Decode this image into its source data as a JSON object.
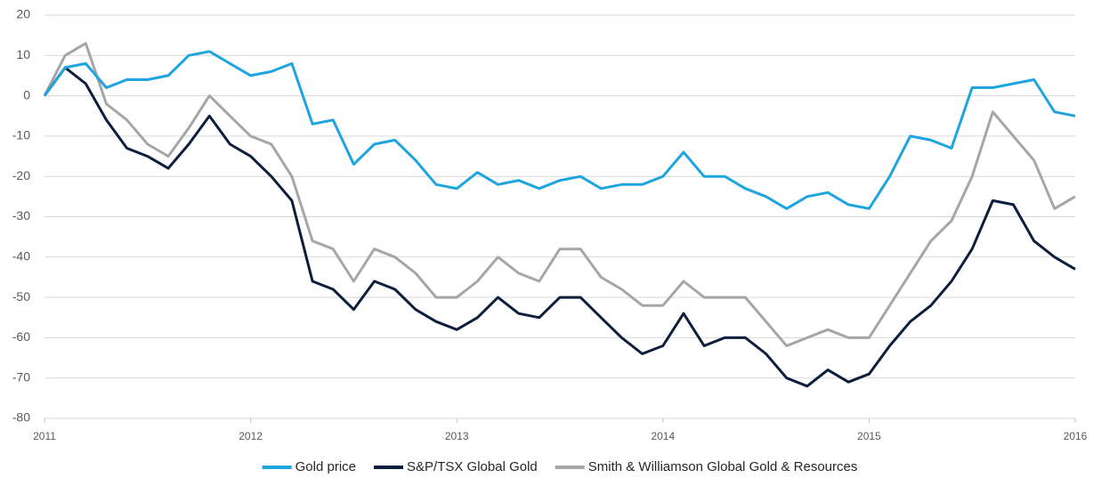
{
  "chart_data": {
    "type": "line",
    "x": [
      2011.0,
      2011.1,
      2011.2,
      2011.3,
      2011.4,
      2011.5,
      2011.6,
      2011.7,
      2011.8,
      2011.9,
      2012.0,
      2012.1,
      2012.2,
      2012.3,
      2012.4,
      2012.5,
      2012.6,
      2012.7,
      2012.8,
      2012.9,
      2013.0,
      2013.1,
      2013.2,
      2013.3,
      2013.4,
      2013.5,
      2013.6,
      2013.7,
      2013.8,
      2013.9,
      2014.0,
      2014.1,
      2014.2,
      2014.3,
      2014.4,
      2014.5,
      2014.6,
      2014.7,
      2014.8,
      2014.9,
      2015.0,
      2015.1,
      2015.2,
      2015.3,
      2015.4,
      2015.5,
      2015.6,
      2015.7,
      2015.8,
      2015.9,
      2016.0
    ],
    "series": [
      {
        "name": "Gold price",
        "color": "#1ea5e0",
        "values": [
          0,
          7,
          8,
          2,
          4,
          4,
          5,
          10,
          11,
          8,
          5,
          6,
          8,
          -7,
          -6,
          -17,
          -12,
          -11,
          -16,
          -22,
          -23,
          -19,
          -22,
          -21,
          -23,
          -21,
          -20,
          -23,
          -22,
          -22,
          -20,
          -14,
          -20,
          -20,
          -23,
          -25,
          -28,
          -25,
          -24,
          -27,
          -28,
          -20,
          -10,
          -11,
          -13,
          2,
          2,
          3,
          4,
          -4,
          -5
        ]
      },
      {
        "name": "S&P/TSX Global Gold",
        "color": "#0d1f3c",
        "values": [
          0,
          7,
          3,
          -6,
          -13,
          -15,
          -18,
          -12,
          -5,
          -12,
          -15,
          -20,
          -26,
          -46,
          -48,
          -53,
          -46,
          -48,
          -53,
          -56,
          -58,
          -55,
          -50,
          -54,
          -55,
          -50,
          -50,
          -55,
          -60,
          -64,
          -62,
          -54,
          -62,
          -60,
          -60,
          -64,
          -70,
          -72,
          -68,
          -71,
          -69,
          -62,
          -56,
          -52,
          -46,
          -38,
          -26,
          -27,
          -36,
          -40,
          -43
        ]
      },
      {
        "name": "Smith & Williamson Global Gold & Resources",
        "color": "#a6a6a6",
        "values": [
          0,
          10,
          13,
          -2,
          -6,
          -12,
          -15,
          -8,
          0,
          -5,
          -10,
          -12,
          -20,
          -36,
          -38,
          -46,
          -38,
          -40,
          -44,
          -50,
          -50,
          -46,
          -40,
          -44,
          -46,
          -38,
          -38,
          -45,
          -48,
          -52,
          -52,
          -46,
          -50,
          -50,
          -50,
          -56,
          -62,
          -60,
          -58,
          -60,
          -60,
          -52,
          -44,
          -36,
          -31,
          -20,
          -4,
          -10,
          -16,
          -28,
          -25
        ]
      }
    ],
    "xlim": [
      2011,
      2016
    ],
    "xticks": [
      2011,
      2012,
      2013,
      2014,
      2015,
      2016
    ],
    "ylim": [
      -80,
      20
    ],
    "yticks": [
      20,
      10,
      0,
      -10,
      -20,
      -30,
      -40,
      -50,
      -60,
      -70,
      -80
    ],
    "grid": true,
    "legend": "bottom"
  }
}
